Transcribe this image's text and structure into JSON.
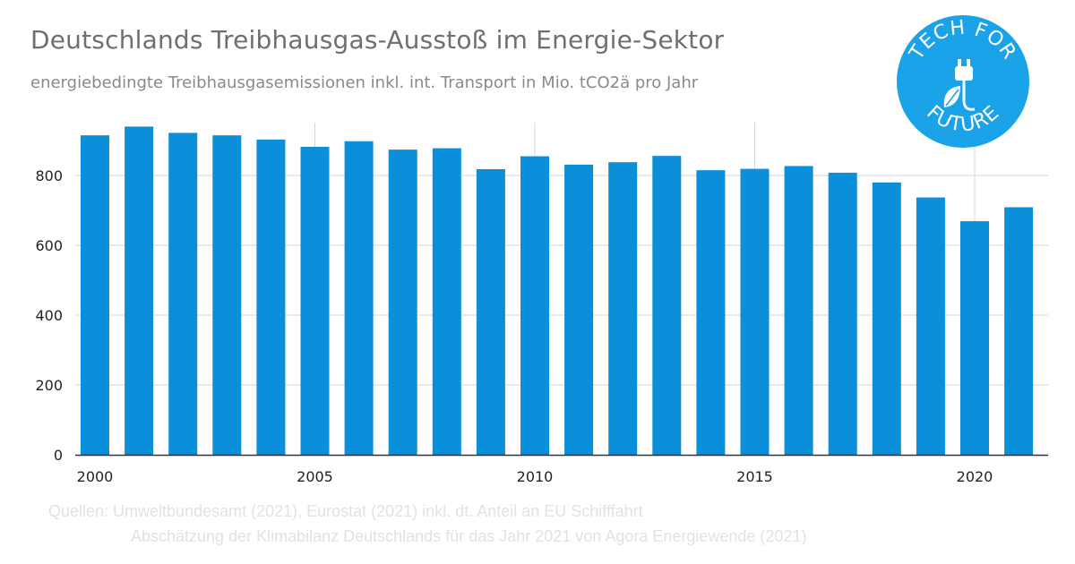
{
  "header": {
    "title": "Deutschlands Treibhausgas-Ausstoß im Energie-Sektor",
    "subtitle": "energiebedingte Treibhausgasemissionen inkl. int. Transport in Mio. tCO2ä pro Jahr"
  },
  "logo": {
    "text_top": "TECH FOR",
    "text_bottom": "FUTURE",
    "icon": "plug-leaf-icon",
    "color": "#1aa3e8"
  },
  "sources": {
    "line1": "Quellen: Umweltbundesamt (2021), Eurostat (2021) inkl. dt. Anteil an EU Schifffahrt",
    "line2": "Abschätzung der Klimabilanz Deutschlands für das Jahr 2021 von Agora Energiewende (2021)"
  },
  "chart_data": {
    "type": "bar",
    "title": "Deutschlands Treibhausgas-Ausstoß im Energie-Sektor",
    "subtitle": "energiebedingte Treibhausgasemissionen inkl. int. Transport in Mio. tCO2ä pro Jahr",
    "categories": [
      2000,
      2001,
      2002,
      2003,
      2004,
      2005,
      2006,
      2007,
      2008,
      2009,
      2010,
      2011,
      2012,
      2013,
      2014,
      2015,
      2016,
      2017,
      2018,
      2019,
      2020,
      2021
    ],
    "values": [
      915,
      940,
      922,
      915,
      903,
      882,
      898,
      874,
      878,
      818,
      855,
      831,
      838,
      856,
      815,
      819,
      827,
      808,
      780,
      737,
      669,
      709
    ],
    "x_tick_labels": [
      "2000",
      "2005",
      "2010",
      "2015",
      "2020"
    ],
    "y_ticks": [
      0,
      200,
      400,
      600,
      800
    ],
    "ylim": [
      0,
      950
    ],
    "bar_color": "#0b8fdb",
    "grid": "horizontal",
    "legend": "none"
  }
}
